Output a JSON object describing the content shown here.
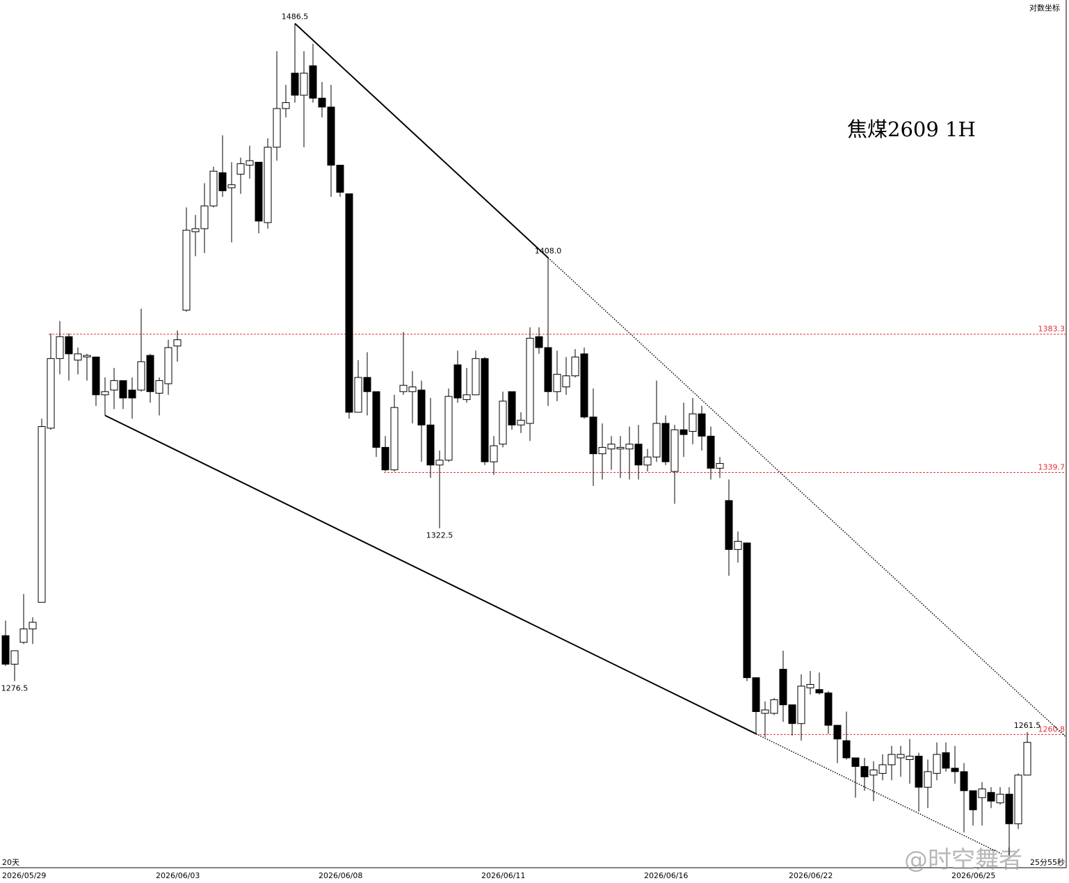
{
  "chart_data": {
    "type": "candlestick",
    "title": "焦煤2609  1H",
    "log_scale_label": "对数坐标",
    "period_label": "20天",
    "countdown_label": "25分55秒",
    "watermark": "@时空舞者",
    "log_scale": true,
    "ylim": [
      1222.5,
      1494.6
    ],
    "up_color": "#ffffff",
    "down_color": "#000000",
    "level_color": "#e0303a",
    "categories": [
      "2026/05/29",
      null,
      null,
      null,
      null,
      null,
      null,
      null,
      null,
      null,
      null,
      null,
      null,
      null,
      null,
      null,
      null,
      "2026/06/03",
      null,
      null,
      null,
      null,
      null,
      null,
      null,
      null,
      null,
      null,
      null,
      null,
      null,
      null,
      null,
      null,
      null,
      "2026/06/08",
      null,
      null,
      null,
      null,
      null,
      null,
      null,
      null,
      null,
      null,
      null,
      null,
      null,
      null,
      null,
      null,
      null,
      "2026/06/11",
      null,
      null,
      null,
      null,
      null,
      null,
      null,
      null,
      null,
      null,
      null,
      null,
      null,
      null,
      null,
      null,
      null,
      "2026/06/16",
      null,
      null,
      null,
      null,
      null,
      null,
      null,
      null,
      null,
      null,
      null,
      null,
      null,
      null,
      null,
      "2026/06/22",
      null,
      null,
      null,
      null,
      null,
      null,
      null,
      null,
      null,
      null,
      null,
      null,
      null,
      null,
      null,
      null,
      null,
      "2026/06/25",
      null,
      null,
      null,
      null,
      null,
      null,
      null,
      null
    ],
    "ohlc": [
      [
        1290,
        1294.5,
        1281,
        1281.5
      ],
      [
        1281.5,
        1285.5,
        1276.5,
        1285.5
      ],
      [
        1288,
        1302.5,
        1287.5,
        1292
      ],
      [
        1292,
        1295.5,
        1287.5,
        1294
      ],
      [
        1300,
        1356.5,
        1300,
        1354
      ],
      [
        1353.5,
        1383.5,
        1353,
        1375.5
      ],
      [
        1375.5,
        1387.5,
        1370.5,
        1382.5
      ],
      [
        1382.5,
        1383.5,
        1368.5,
        1377
      ],
      [
        1375,
        1379,
        1370.5,
        1377
      ],
      [
        1376,
        1377,
        1368.5,
        1376.5
      ],
      [
        1376,
        1376,
        1360.5,
        1364
      ],
      [
        1364,
        1369.5,
        1357.5,
        1365
      ],
      [
        1365.5,
        1372.5,
        1359.5,
        1368.5
      ],
      [
        1368.5,
        1368.5,
        1359.5,
        1363
      ],
      [
        1365.5,
        1369.5,
        1356.5,
        1363
      ],
      [
        1365.5,
        1391.5,
        1365,
        1374.5
      ],
      [
        1376.5,
        1377,
        1361.5,
        1365
      ],
      [
        1364.5,
        1369.5,
        1357.5,
        1368.5
      ],
      [
        1367.5,
        1381.5,
        1364,
        1379
      ],
      [
        1379.5,
        1384.5,
        1374.5,
        1381.5
      ],
      [
        1391,
        1424.5,
        1390.5,
        1417
      ],
      [
        1416.5,
        1422,
        1408.5,
        1417.5
      ],
      [
        1417.5,
        1432.5,
        1409.5,
        1425
      ],
      [
        1425,
        1438,
        1424.5,
        1436.5
      ],
      [
        1436,
        1448.5,
        1428,
        1430
      ],
      [
        1431,
        1439.5,
        1413,
        1432
      ],
      [
        1435.5,
        1441,
        1429,
        1439
      ],
      [
        1438.5,
        1445,
        1434,
        1440
      ],
      [
        1439.5,
        1439.5,
        1416,
        1420
      ],
      [
        1419.5,
        1447.5,
        1417.5,
        1444.5
      ],
      [
        1444.5,
        1477,
        1440,
        1457.5
      ],
      [
        1457.5,
        1465.5,
        1454.5,
        1459.5
      ],
      [
        1469.5,
        1486.5,
        1459.5,
        1462
      ],
      [
        1462,
        1477,
        1444.5,
        1469.5
      ],
      [
        1472,
        1479.5,
        1459.5,
        1461
      ],
      [
        1461,
        1466.5,
        1454.5,
        1458
      ],
      [
        1458,
        1465.5,
        1428,
        1438.5
      ],
      [
        1438.5,
        1438.5,
        1428,
        1429.5
      ],
      [
        1429,
        1429,
        1356.5,
        1358.5
      ],
      [
        1358.5,
        1375,
        1358.5,
        1369.5
      ],
      [
        1369.5,
        1377.5,
        1357.5,
        1365
      ],
      [
        1365,
        1365,
        1344.5,
        1347.5
      ],
      [
        1347.5,
        1351,
        1340,
        1340.5
      ],
      [
        1340.5,
        1364,
        1340,
        1360
      ],
      [
        1365,
        1384,
        1364,
        1367
      ],
      [
        1365,
        1371.5,
        1355,
        1366.5
      ],
      [
        1365.5,
        1368.5,
        1343,
        1354.5
      ],
      [
        1354.5,
        1363,
        1338,
        1342
      ],
      [
        1342,
        1346.5,
        1322.5,
        1343.5
      ],
      [
        1343.5,
        1366,
        1343,
        1363.5
      ],
      [
        1373.5,
        1378,
        1361.5,
        1363
      ],
      [
        1362.5,
        1372.5,
        1361.5,
        1364
      ],
      [
        1364,
        1378,
        1364,
        1375.5
      ],
      [
        1375.5,
        1376,
        1342,
        1343
      ],
      [
        1343,
        1351,
        1339,
        1348
      ],
      [
        1348.5,
        1365,
        1347.5,
        1362
      ],
      [
        1365,
        1365,
        1353,
        1354.5
      ],
      [
        1354.5,
        1358.5,
        1352,
        1356
      ],
      [
        1355,
        1385.5,
        1349.5,
        1382
      ],
      [
        1382.5,
        1385.5,
        1377,
        1379
      ],
      [
        1379,
        1408,
        1360.5,
        1365
      ],
      [
        1365,
        1378,
        1362,
        1370.5
      ],
      [
        1366.5,
        1376,
        1364,
        1370
      ],
      [
        1370,
        1378.5,
        1369.5,
        1376
      ],
      [
        1377,
        1379,
        1356.5,
        1357
      ],
      [
        1357,
        1366,
        1335.5,
        1345.5
      ],
      [
        1345.5,
        1355,
        1337.5,
        1347.5
      ],
      [
        1347,
        1351,
        1340.5,
        1348.5
      ],
      [
        1347,
        1351,
        1338,
        1347.5
      ],
      [
        1347,
        1354,
        1337.5,
        1348.5
      ],
      [
        1348.5,
        1354.5,
        1337.5,
        1342
      ],
      [
        1342,
        1347,
        1340,
        1344.5
      ],
      [
        1344.5,
        1368.5,
        1343,
        1355
      ],
      [
        1355,
        1357.5,
        1342,
        1343
      ],
      [
        1340,
        1354.5,
        1330,
        1353
      ],
      [
        1353,
        1361.5,
        1344.5,
        1351.5
      ],
      [
        1352.5,
        1363,
        1348.5,
        1358
      ],
      [
        1358,
        1360.5,
        1346.5,
        1351
      ],
      [
        1351,
        1354,
        1337.5,
        1341
      ],
      [
        1341,
        1344.5,
        1338,
        1342.5
      ],
      [
        1331,
        1337.5,
        1308,
        1316
      ],
      [
        1316,
        1321.5,
        1312,
        1318.5
      ],
      [
        1318,
        1318,
        1276.5,
        1277.5
      ],
      [
        1277.5,
        1277.5,
        1261,
        1267.5
      ],
      [
        1267,
        1270.5,
        1260,
        1268
      ],
      [
        1267,
        1271.5,
        1266.5,
        1271
      ],
      [
        1280,
        1285.5,
        1264.5,
        1269.5
      ],
      [
        1269.5,
        1269.5,
        1260.5,
        1264
      ],
      [
        1264,
        1278.5,
        1259,
        1275
      ],
      [
        1274.5,
        1279.5,
        1272.5,
        1275.5
      ],
      [
        1274,
        1279,
        1272.5,
        1273
      ],
      [
        1273,
        1273.5,
        1261,
        1263.5
      ],
      [
        1263.5,
        1263.5,
        1252.5,
        1259.5
      ],
      [
        1259,
        1267.5,
        1253.5,
        1254
      ],
      [
        1254,
        1254,
        1242.5,
        1251.5
      ],
      [
        1251.5,
        1254,
        1244.5,
        1248.5
      ],
      [
        1249,
        1253,
        1241.5,
        1250.5
      ],
      [
        1249.5,
        1255,
        1247.5,
        1252
      ],
      [
        1252,
        1257.5,
        1247.5,
        1255
      ],
      [
        1254,
        1257.5,
        1248.5,
        1255
      ],
      [
        1253.5,
        1259.5,
        1246.5,
        1254.5
      ],
      [
        1254.5,
        1255.5,
        1238.5,
        1245.5
      ],
      [
        1245.5,
        1253.5,
        1239.5,
        1250
      ],
      [
        1249.5,
        1258.5,
        1247.5,
        1255
      ],
      [
        1255.5,
        1258.5,
        1250,
        1251
      ],
      [
        1251,
        1257.5,
        1246.5,
        1250
      ],
      [
        1250,
        1252.5,
        1232.5,
        1244.5
      ],
      [
        1244.5,
        1244.5,
        1234.5,
        1239
      ],
      [
        1242.5,
        1247,
        1234.5,
        1245
      ],
      [
        1244,
        1245.5,
        1239.5,
        1241.5
      ],
      [
        1241,
        1245.5,
        1240.5,
        1243.5
      ],
      [
        1243.5,
        1245.5,
        1226,
        1235
      ],
      [
        1235,
        1249.5,
        1233.5,
        1249
      ],
      [
        1249,
        1261.5,
        1249,
        1258.5
      ]
    ],
    "levels": [
      1383.3,
      1339.7,
      1260.8
    ],
    "extreme_labels": {
      "values": [
        1486.5,
        1408,
        1322.5,
        1276.5,
        1261.5
      ],
      "value_labels": [
        "1486.5",
        "1408.0",
        "1322.5",
        "1276.5",
        "1261.5"
      ]
    }
  }
}
